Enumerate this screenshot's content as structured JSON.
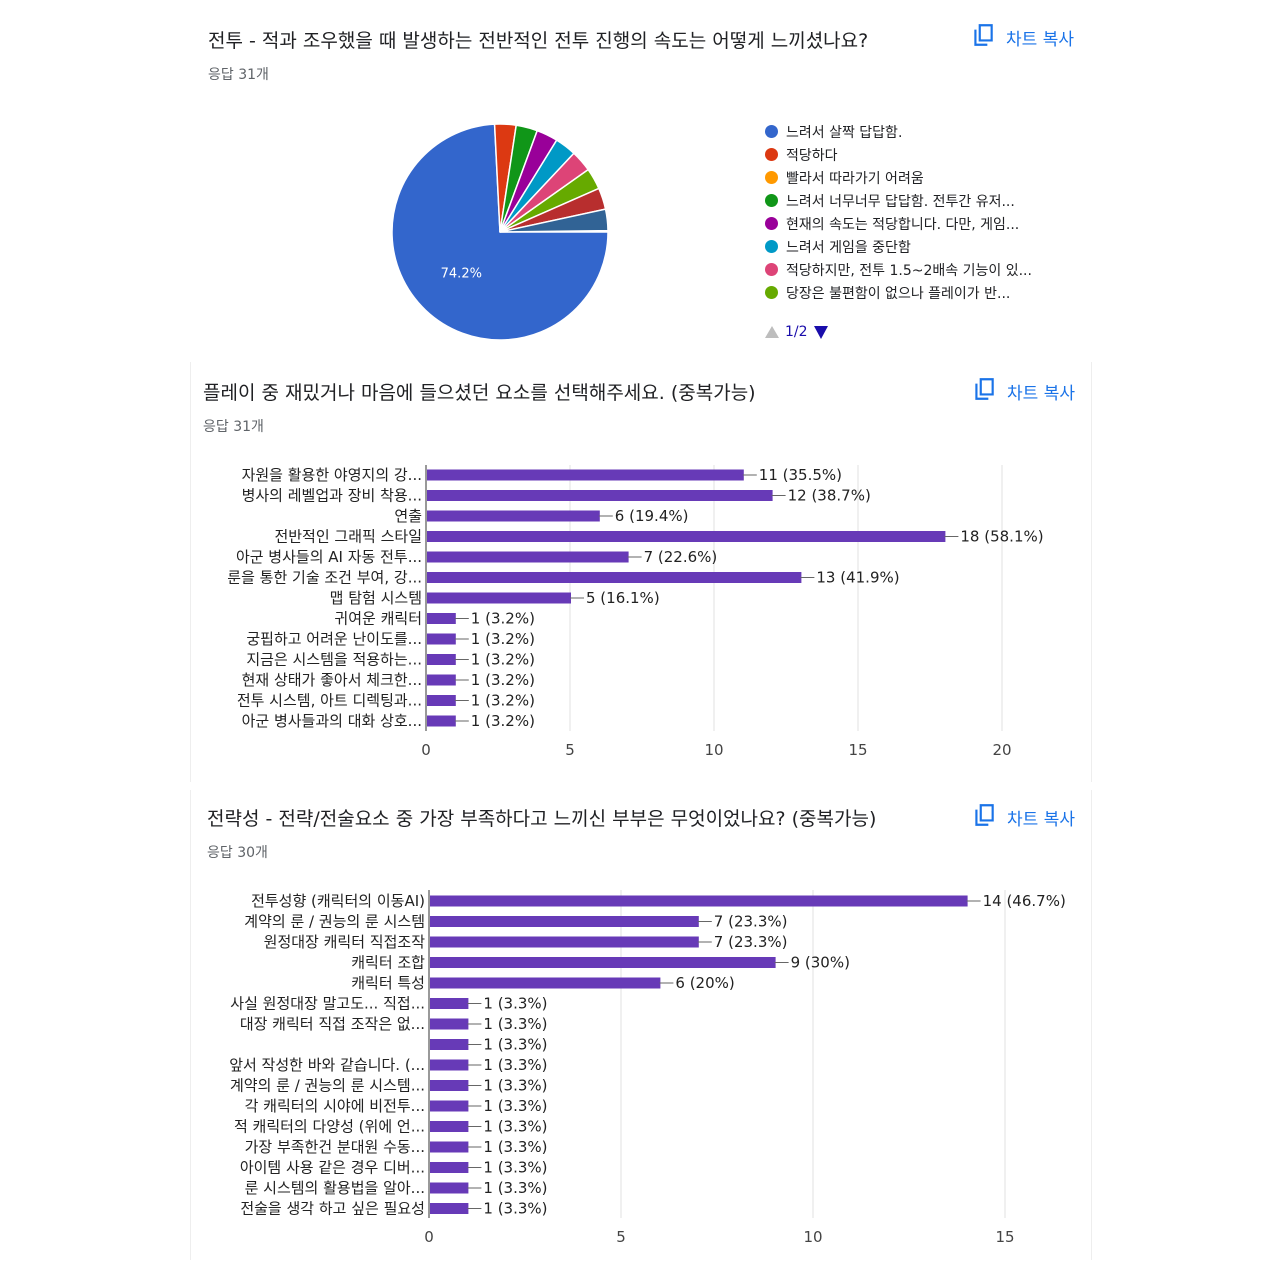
{
  "copy_label": "차트 복사",
  "q1": {
    "title": "전투 - 적과 조우했을 때 발생하는 전반적인 전투 진행의 속도는 어떻게 느끼셨나요?",
    "count": "응답 31개",
    "pager": "1/2",
    "chart_data": {
      "type": "pie",
      "slices": [
        {
          "label": "느려서 살짝 답답함.",
          "percent": 74.2,
          "color": "#3366cc",
          "value_label": "74.2%"
        },
        {
          "label": "적당하다",
          "percent": 3.2,
          "color": "#dc3912"
        },
        {
          "label": "빨라서 따라가기 어려움",
          "percent": 0,
          "color": "#ff9900"
        },
        {
          "label": "느려서 너무너무 답답함. 전투간 유저...",
          "percent": 3.2,
          "color": "#109618"
        },
        {
          "label": "현재의 속도는 적당합니다. 다만, 게임...",
          "percent": 3.2,
          "color": "#990099"
        },
        {
          "label": "느려서 게임을 중단함",
          "percent": 3.2,
          "color": "#0099c6"
        },
        {
          "label": "적당하지만, 전투 1.5~2배속 기능이 있...",
          "percent": 3.2,
          "color": "#dd4477"
        },
        {
          "label": "당장은 불편함이 없으나 플레이가 반...",
          "percent": 3.2,
          "color": "#66aa00"
        },
        {
          "label": "",
          "percent": 3.2,
          "color": "#b82e2e"
        },
        {
          "label": "",
          "percent": 3.2,
          "color": "#316395"
        }
      ]
    }
  },
  "q2": {
    "title": "플레이 중 재밌거나 마음에 들으셨던 요소를 선택해주세요. (중복가능)",
    "count": "응답 31개",
    "chart_data": {
      "type": "bar",
      "orientation": "horizontal",
      "xlim": [
        0,
        20
      ],
      "ticks": [
        0,
        5,
        10,
        15,
        20
      ],
      "bar_color": "#673ab7",
      "categories": [
        "자원을 활용한 야영지의 강...",
        "병사의 레벨업과 장비 착용...",
        "연출",
        "전반적인 그래픽 스타일",
        "아군 병사들의 AI 자동 전투...",
        "룬을 통한 기술 조건 부여, 강...",
        "맵 탐험 시스템",
        "귀여운 캐릭터",
        "궁핍하고 어려운 난이도를...",
        "지금은 시스템을 적용하는...",
        "현재 상태가 좋아서 체크한...",
        "전투 시스템, 아트 디렉팅과...",
        "아군 병사들과의 대화 상호..."
      ],
      "values": [
        11,
        12,
        6,
        18,
        7,
        13,
        5,
        1,
        1,
        1,
        1,
        1,
        1
      ],
      "labels": [
        "11 (35.5%)",
        "12 (38.7%)",
        "6 (19.4%)",
        "18 (58.1%)",
        "7 (22.6%)",
        "13 (41.9%)",
        "5 (16.1%)",
        "1 (3.2%)",
        "1 (3.2%)",
        "1 (3.2%)",
        "1 (3.2%)",
        "1 (3.2%)",
        "1 (3.2%)"
      ]
    }
  },
  "q3": {
    "title": "전략성 - 전략/전술요소 중 가장 부족하다고 느끼신 부부은 무엇이었나요? (중복가능)",
    "count": "응답 30개",
    "chart_data": {
      "type": "bar",
      "orientation": "horizontal",
      "xlim": [
        0,
        15
      ],
      "ticks": [
        0,
        5,
        10,
        15
      ],
      "bar_color": "#673ab7",
      "categories": [
        "전투성향 (캐릭터의 이동AI)",
        "계약의 룬 / 권능의 룬 시스템",
        "원정대장 캐릭터 직접조작",
        "캐릭터 조합",
        "캐릭터 특성",
        "사실 원정대장 말고도... 직접...",
        "대장 캐릭터 직접 조작은 없...",
        "",
        "앞서 작성한 바와 같습니다. (...",
        "계약의 룬 / 권능의 룬 시스템...",
        "각 캐릭터의 시야에 비전투...",
        "적 캐릭터의 다양성 (위에 언...",
        "가장 부족한건 분대원 수동...",
        "아이템 사용 같은 경우 디버...",
        "룬 시스템의 활용법을 알아...",
        "전술을 생각 하고 싶은 필요성"
      ],
      "values": [
        14,
        7,
        7,
        9,
        6,
        1,
        1,
        1,
        1,
        1,
        1,
        1,
        1,
        1,
        1,
        1
      ],
      "labels": [
        "14 (46.7%)",
        "7 (23.3%)",
        "7 (23.3%)",
        "9 (30%)",
        "6 (20%)",
        "1 (3.3%)",
        "1 (3.3%)",
        "1 (3.3%)",
        "1 (3.3%)",
        "1 (3.3%)",
        "1 (3.3%)",
        "1 (3.3%)",
        "1 (3.3%)",
        "1 (3.3%)",
        "1 (3.3%)",
        "1 (3.3%)"
      ]
    }
  }
}
